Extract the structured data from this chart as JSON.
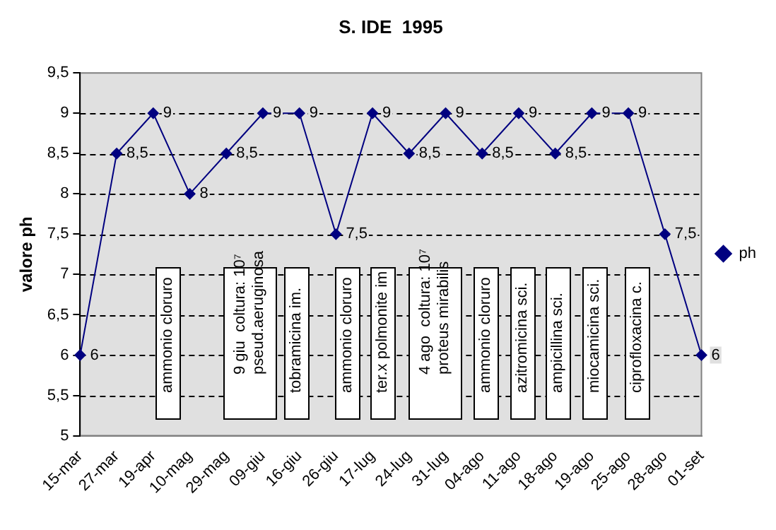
{
  "chart_data": {
    "type": "line",
    "title": "S. IDE  1995",
    "ylabel": "valore ph",
    "categories": [
      "15-mar",
      "27-mar",
      "19-apr",
      "10-mag",
      "29-mag",
      "09-giu",
      "16-giu",
      "26-giu",
      "17-lug",
      "24-lug",
      "31-lug",
      "04-ago",
      "11-ago",
      "18-ago",
      "19-ago",
      "25-ago",
      "28-ago",
      "01-set"
    ],
    "series": [
      {
        "name": "ph",
        "color": "#000080",
        "values": [
          6,
          8.5,
          9,
          8,
          8.5,
          9,
          9,
          7.5,
          9,
          8.5,
          9,
          8.5,
          9,
          8.5,
          9,
          9,
          7.5,
          6
        ],
        "value_labels": [
          "6",
          "8,5",
          "9",
          "8",
          "8,5",
          "9",
          "9",
          "7,5",
          "9",
          "8,5",
          "9",
          "8,5",
          "9",
          "8,5",
          "9",
          "9",
          "7,5",
          "6"
        ]
      }
    ],
    "ylim": [
      5,
      9.5
    ],
    "yticks": [
      5,
      {
        "value": 5.5,
        "label": "5,5"
      },
      6,
      {
        "value": 6.5,
        "label": "6,5"
      },
      7,
      {
        "value": 7.5,
        "label": "7,5"
      },
      8,
      {
        "value": 8.5,
        "label": "8,5"
      },
      9,
      {
        "value": 9.5,
        "label": "9,5"
      }
    ],
    "grid": "y",
    "legend": "right",
    "marker": "diamond",
    "line_style": "solid",
    "annotations": [
      "ammonio cloruro",
      "9 giu  coltura: 10⁷\npseud.aeruginosa",
      "tobramicina im.",
      "ammonio cloruro",
      "ter.x polmonite im",
      "4 ago  coltura: 10⁷\nproteus mirabilis",
      "ammonio cloruro",
      "azitromicina sci.",
      "ampicillina sci.",
      "miocamicina sci.",
      "ciprofloxacina c."
    ]
  }
}
